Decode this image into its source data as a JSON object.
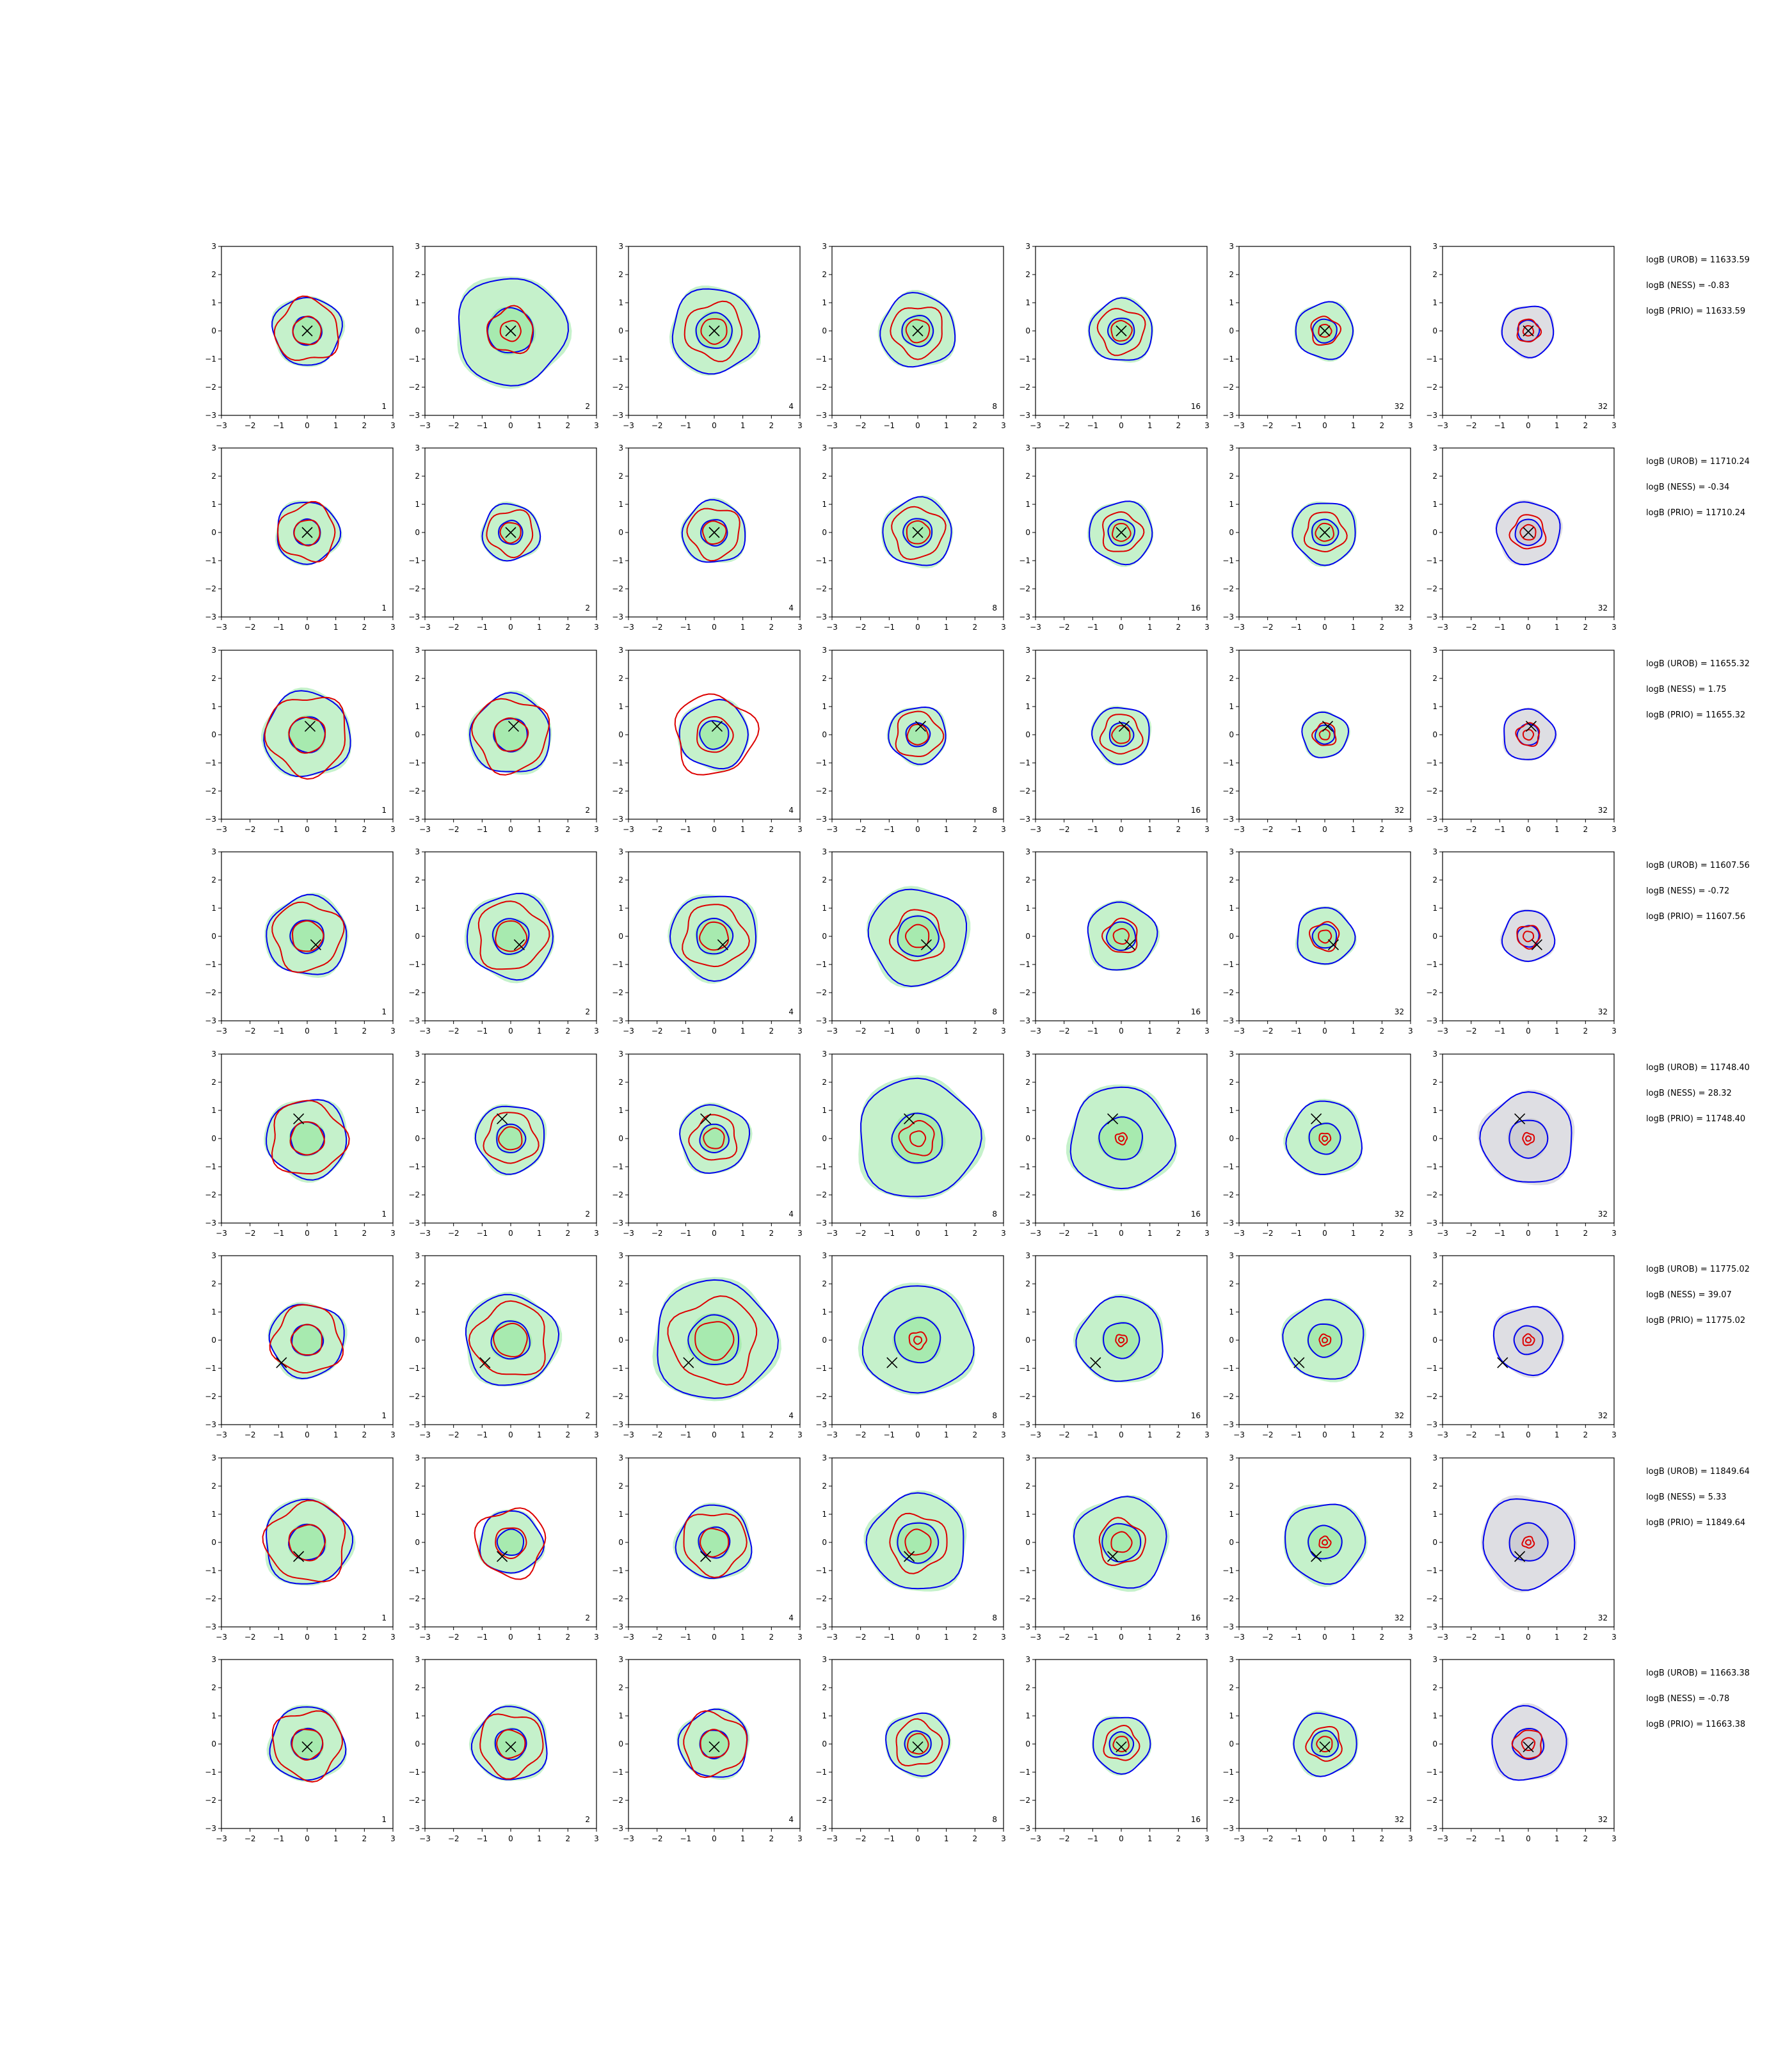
{
  "chart_data": {
    "type": "contour-grid",
    "title": "",
    "xlim": [
      -3,
      3
    ],
    "ylim": [
      -3,
      3
    ],
    "ticks": [
      -3,
      -2,
      -1,
      0,
      1,
      2,
      3
    ],
    "tick_labels": [
      "−3",
      "−2",
      "−1",
      "0",
      "1",
      "2",
      "3"
    ],
    "grid": false,
    "columns": [
      "1",
      "2",
      "4",
      "8",
      "16",
      "32",
      "32"
    ],
    "colors": {
      "outer_contour": "#0000ee",
      "inner_contour": "#dd0000",
      "fill": "#9fe8a8",
      "fill_last_column": "#c8c8d0",
      "marker": "#000000"
    },
    "rows": [
      {
        "marker": [
          0.0,
          0.0
        ],
        "outer_radius": [
          1.2,
          1.9,
          1.5,
          1.3,
          1.1,
          1.0,
          0.9
        ],
        "inner_radius": [
          1.1,
          0.8,
          1.0,
          0.9,
          0.8,
          0.5,
          0.4
        ],
        "stats": [
          "logB (UROB) = 11633.59",
          "logB (NESS) = -0.83",
          "logB (PRIO) = 11633.59"
        ]
      },
      {
        "marker": [
          0.0,
          0.0
        ],
        "outer_radius": [
          1.1,
          1.0,
          1.1,
          1.2,
          1.1,
          1.1,
          1.1
        ],
        "inner_radius": [
          1.0,
          0.8,
          0.9,
          0.9,
          0.7,
          0.7,
          0.6
        ],
        "stats": [
          "logB (UROB) = 11710.24",
          "logB (NESS) = -0.34",
          "logB (PRIO) = 11710.24"
        ]
      },
      {
        "marker": [
          0.1,
          0.3
        ],
        "outer_radius": [
          1.5,
          1.4,
          1.2,
          1.0,
          1.0,
          0.8,
          0.9
        ],
        "inner_radius": [
          1.4,
          1.3,
          1.4,
          0.8,
          0.7,
          0.4,
          0.4
        ],
        "stats": [
          "logB (UROB) = 11655.32",
          "logB (NESS) = 1.75",
          "logB (PRIO) = 11655.32"
        ]
      },
      {
        "marker": [
          0.3,
          -0.3
        ],
        "outer_radius": [
          1.4,
          1.5,
          1.5,
          1.7,
          1.2,
          1.0,
          0.9
        ],
        "inner_radius": [
          1.2,
          1.2,
          1.1,
          0.9,
          0.6,
          0.5,
          0.4
        ],
        "stats": [
          "logB (UROB) = 11607.56",
          "logB (NESS) = -0.72",
          "logB (PRIO) = 11607.56"
        ]
      },
      {
        "marker": [
          -0.3,
          0.7
        ],
        "outer_radius": [
          1.4,
          1.2,
          1.2,
          2.1,
          1.8,
          1.3,
          1.6
        ],
        "inner_radius": [
          1.3,
          0.9,
          0.8,
          0.6,
          0.2,
          0.2,
          0.2
        ],
        "stats": [
          "logB (UROB) = 11748.40",
          "logB (NESS) = 28.32",
          "logB (PRIO) = 11748.40"
        ]
      },
      {
        "marker": [
          -0.9,
          -0.8
        ],
        "outer_radius": [
          1.3,
          1.6,
          2.1,
          1.9,
          1.5,
          1.4,
          1.2
        ],
        "inner_radius": [
          1.2,
          1.3,
          1.5,
          0.3,
          0.2,
          0.2,
          0.2
        ],
        "stats": [
          "logB (UROB) = 11775.02",
          "logB (NESS) = 39.07",
          "logB (PRIO) = 11775.02"
        ]
      },
      {
        "marker": [
          -0.3,
          -0.5
        ],
        "outer_radius": [
          1.5,
          1.1,
          1.3,
          1.7,
          1.6,
          1.4,
          1.6
        ],
        "inner_radius": [
          1.4,
          1.2,
          1.1,
          1.0,
          0.8,
          0.2,
          0.2
        ],
        "stats": [
          "logB (UROB) = 11849.64",
          "logB (NESS) = 5.33",
          "logB (PRIO) = 11849.64"
        ]
      },
      {
        "marker": [
          0.0,
          -0.1
        ],
        "outer_radius": [
          1.3,
          1.3,
          1.2,
          1.1,
          1.0,
          1.1,
          1.3
        ],
        "inner_radius": [
          1.2,
          1.1,
          1.1,
          0.8,
          0.6,
          0.6,
          0.5
        ],
        "stats": [
          "logB (UROB) = 11663.38",
          "logB (NESS) = -0.78",
          "logB (PRIO) = 11663.38"
        ]
      }
    ]
  }
}
